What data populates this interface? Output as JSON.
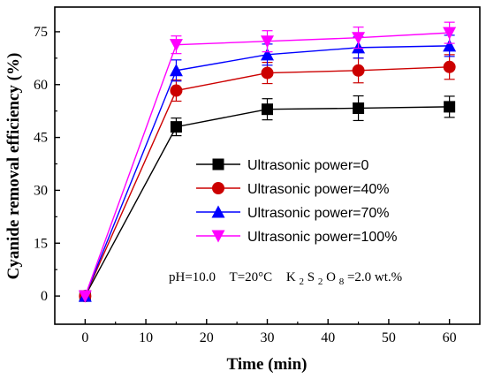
{
  "chart_data": {
    "type": "line",
    "xlabel": "Time (min)",
    "ylabel": "Cyanide removal efficiency (%)",
    "xlim": [
      -5,
      65
    ],
    "ylim": [
      -8,
      82
    ],
    "xticks": [
      0,
      10,
      20,
      30,
      40,
      50,
      60
    ],
    "yticks": [
      0,
      15,
      30,
      45,
      60,
      75
    ],
    "x": [
      0,
      15,
      30,
      45,
      60
    ],
    "legend_position": "center-right",
    "series": [
      {
        "name": "Ultrasonic power=0",
        "color": "#000000",
        "marker": "square",
        "values": [
          0,
          48,
          53,
          53.3,
          53.7
        ],
        "errors": [
          0,
          2.5,
          3,
          3.5,
          3
        ]
      },
      {
        "name": "Ultrasonic power=40%",
        "color": "#cc0000",
        "marker": "circle",
        "values": [
          0,
          58.3,
          63.3,
          64,
          65
        ],
        "errors": [
          0,
          3,
          3,
          3.5,
          3.5
        ]
      },
      {
        "name": "Ultrasonic power=70%",
        "color": "#0000ff",
        "marker": "triangle-up",
        "values": [
          0,
          64,
          68.5,
          70.5,
          71
        ],
        "errors": [
          0,
          3,
          3,
          3,
          3
        ]
      },
      {
        "name": "Ultrasonic power=100%",
        "color": "#ff00ff",
        "marker": "triangle-down",
        "values": [
          0,
          71.3,
          72.3,
          73.3,
          74.7
        ],
        "errors": [
          0,
          2.5,
          3,
          3,
          3
        ]
      }
    ],
    "annotation": {
      "ph": "pH=10.0",
      "temp": "T=20°C",
      "oxidant_main": "K",
      "oxidant_sub1": "2",
      "oxidant_mid": "S",
      "oxidant_sub2": "2",
      "oxidant_o": "O",
      "oxidant_sub3": "8",
      "oxidant_rest": "=2.0 wt.%"
    }
  }
}
